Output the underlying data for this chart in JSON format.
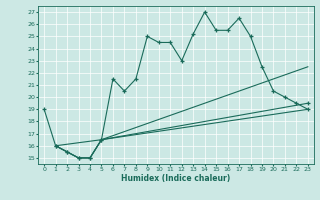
{
  "xlabel": "Humidex (Indice chaleur)",
  "bg_color": "#cce8e4",
  "line_color": "#1a6b5a",
  "grid_color": "#ffffff",
  "xlim": [
    -0.5,
    23.5
  ],
  "ylim": [
    14.5,
    27.5
  ],
  "yticks": [
    15,
    16,
    17,
    18,
    19,
    20,
    21,
    22,
    23,
    24,
    25,
    26,
    27
  ],
  "xticks": [
    0,
    1,
    2,
    3,
    4,
    5,
    6,
    7,
    8,
    9,
    10,
    11,
    12,
    13,
    14,
    15,
    16,
    17,
    18,
    19,
    20,
    21,
    22,
    23
  ],
  "series": [
    {
      "x": [
        0,
        1,
        2,
        3,
        4,
        5,
        6,
        7,
        8,
        9,
        10,
        11,
        12,
        13,
        14,
        15,
        16,
        17,
        18,
        19,
        20,
        21,
        22,
        23
      ],
      "y": [
        19,
        16,
        15.5,
        15,
        15,
        16.5,
        21.5,
        20.5,
        21.5,
        25,
        24.5,
        24.5,
        23,
        25.2,
        27,
        25.5,
        25.5,
        26.5,
        25,
        22.5,
        20.5,
        20,
        19.5,
        19
      ],
      "markers": true
    },
    {
      "x": [
        1,
        2,
        3,
        4,
        5,
        23
      ],
      "y": [
        16,
        15.5,
        15,
        15,
        16.5,
        19.5
      ],
      "markers": true
    },
    {
      "x": [
        1,
        2,
        3,
        4,
        5,
        23
      ],
      "y": [
        16,
        15.5,
        15,
        15,
        16.5,
        19
      ],
      "markers": false
    },
    {
      "x": [
        1,
        5,
        23
      ],
      "y": [
        16,
        16.5,
        22.5
      ],
      "markers": false
    }
  ]
}
